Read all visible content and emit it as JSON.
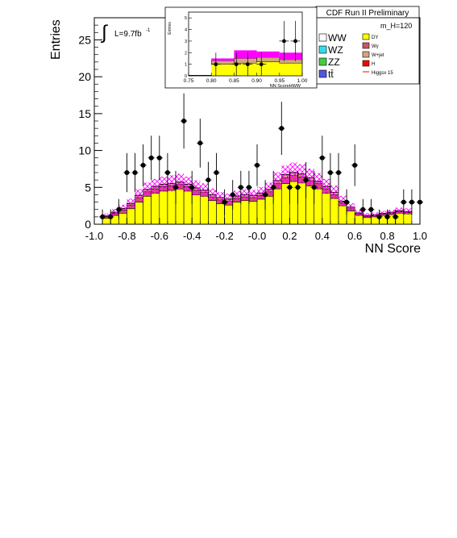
{
  "chart_data": {
    "type": "histogram",
    "header": "CDF Run II Preliminary",
    "mass_label": "m_H=120",
    "luminosity_label": "L=9.7fb",
    "luminosity_exponent": "-1",
    "xlabel": "NN Score",
    "ylabel": "Entries",
    "xlim": [
      -1.0,
      1.0
    ],
    "ylim": [
      0,
      28
    ],
    "x_ticks": [
      "-1.0",
      "-0.8",
      "-0.6",
      "-0.4",
      "-0.2",
      "-0.0",
      "0.2",
      "0.4",
      "0.6",
      "0.8",
      "1.0"
    ],
    "x_tick_values": [
      -1.0,
      -0.8,
      -0.6,
      -0.4,
      -0.2,
      0.0,
      0.2,
      0.4,
      0.6,
      0.8,
      1.0
    ],
    "y_ticks": [
      "0",
      "5",
      "10",
      "15",
      "20",
      "25"
    ],
    "y_tick_values": [
      0,
      5,
      10,
      15,
      20,
      25
    ],
    "bin_edges_start": -0.95,
    "bin_width": 0.05,
    "stack": [
      {
        "name": "DY",
        "color": "#ffff00",
        "values": [
          0.8,
          1.2,
          1.5,
          2.1,
          3.0,
          3.8,
          4.2,
          4.5,
          4.6,
          4.8,
          4.5,
          4.0,
          3.8,
          3.2,
          2.8,
          2.6,
          3.0,
          3.2,
          3.1,
          3.4,
          3.8,
          4.8,
          5.5,
          5.8,
          5.6,
          5.2,
          4.8,
          4.2,
          3.5,
          2.5,
          1.8,
          1.2,
          0.9,
          1.0,
          1.2,
          1.3,
          1.5,
          1.4
        ]
      },
      {
        "name": "Wγ",
        "color": "#cc5566",
        "values": [
          0.2,
          0.3,
          0.4,
          0.5,
          0.6,
          0.6,
          0.6,
          0.6,
          0.6,
          0.6,
          0.6,
          0.6,
          0.5,
          0.5,
          0.5,
          0.5,
          0.5,
          0.5,
          0.5,
          0.5,
          0.6,
          0.7,
          0.8,
          0.8,
          0.8,
          0.7,
          0.7,
          0.6,
          0.5,
          0.4,
          0.3,
          0.2,
          0.15,
          0.15,
          0.15,
          0.2,
          0.2,
          0.2
        ]
      },
      {
        "name": "W+jet",
        "color": "#d2a680",
        "values": [
          0.1,
          0.1,
          0.2,
          0.2,
          0.3,
          0.3,
          0.3,
          0.3,
          0.3,
          0.3,
          0.3,
          0.3,
          0.3,
          0.3,
          0.3,
          0.3,
          0.3,
          0.3,
          0.3,
          0.3,
          0.3,
          0.4,
          0.4,
          0.4,
          0.4,
          0.4,
          0.3,
          0.3,
          0.3,
          0.2,
          0.2,
          0.1,
          0.1,
          0.1,
          0.1,
          0.1,
          0.1,
          0.1
        ]
      },
      {
        "name": "WW",
        "color": "#ffffff",
        "values": [
          0.05,
          0.05,
          0.05,
          0.05,
          0.05,
          0.05,
          0.05,
          0.05,
          0.05,
          0.05,
          0.05,
          0.05,
          0.05,
          0.05,
          0.05,
          0.05,
          0.05,
          0.05,
          0.05,
          0.05,
          0.05,
          0.05,
          0.05,
          0.05,
          0.05,
          0.05,
          0.05,
          0.05,
          0.05,
          0.05,
          0.05,
          0.05,
          0.05,
          0.05,
          0.05,
          0.05,
          0.05,
          0.05
        ]
      }
    ],
    "uncertainty": {
      "color": "#ff00ff",
      "values": [
        0.3,
        0.4,
        0.5,
        0.6,
        0.8,
        0.9,
        1.0,
        1.0,
        1.1,
        1.1,
        1.0,
        1.0,
        0.9,
        0.8,
        0.7,
        0.7,
        0.7,
        0.7,
        0.7,
        0.8,
        0.9,
        1.1,
        1.2,
        1.3,
        1.3,
        1.2,
        1.1,
        1.0,
        0.9,
        0.7,
        0.5,
        0.4,
        0.3,
        0.3,
        0.3,
        0.3,
        0.4,
        0.4
      ]
    },
    "higgs": {
      "name": "Higgsx 15",
      "color": "#ff0000",
      "values": [
        0.0,
        0.0,
        0.0,
        0.0,
        0.0,
        0.0,
        0.0,
        0.0,
        0.0,
        0.0,
        0.0,
        0.0,
        0.0,
        0.0,
        0.0,
        0.0,
        0.0,
        0.0,
        0.0,
        0.0,
        0.0,
        0.0,
        0.0,
        0.0,
        0.0,
        0.0,
        0.0,
        0.0,
        0.0,
        0.0,
        0.0,
        0.0,
        0.0,
        0.0,
        0.0,
        0.0,
        0.0,
        0.0
      ]
    },
    "data_points": {
      "x": [
        -0.95,
        -0.9,
        -0.85,
        -0.8,
        -0.75,
        -0.7,
        -0.65,
        -0.6,
        -0.55,
        -0.5,
        -0.45,
        -0.4,
        -0.35,
        -0.3,
        -0.25,
        -0.2,
        -0.15,
        -0.1,
        -0.05,
        0.0,
        0.05,
        0.1,
        0.15,
        0.2,
        0.25,
        0.3,
        0.35,
        0.4,
        0.45,
        0.5,
        0.55,
        0.6,
        0.65,
        0.7,
        0.75,
        0.8,
        0.85,
        0.9,
        0.95,
        1.0
      ],
      "y": [
        1,
        1,
        2,
        7,
        7,
        8,
        9,
        9,
        7,
        5,
        14,
        5,
        11,
        6,
        7,
        3,
        4,
        5,
        5,
        8,
        4,
        5,
        13,
        5,
        5,
        6,
        5,
        9,
        7,
        7,
        3,
        8,
        2,
        2,
        1,
        1,
        1,
        3,
        3,
        3
      ]
    },
    "legend": [
      {
        "name": "WW",
        "color": "#ffffff",
        "size": "big"
      },
      {
        "name": "WZ",
        "color": "#33ddee",
        "size": "big"
      },
      {
        "name": "ZZ",
        "color": "#44cc44",
        "size": "big"
      },
      {
        "name": "tt̄",
        "color": "#5555dd",
        "size": "big"
      },
      {
        "name": "DY",
        "color": "#ffff00",
        "size": "small"
      },
      {
        "name": "Wγ",
        "color": "#cc5566",
        "size": "small"
      },
      {
        "name": "W+jet",
        "color": "#d2a680",
        "size": "small"
      },
      {
        "name": "H",
        "color": "#ff0000",
        "size": "small"
      },
      {
        "name": "Higgsx 15",
        "color": "#ff0000",
        "size": "small",
        "line": true
      }
    ],
    "inset": {
      "xlabel": "NN ScoreHWW",
      "ylabel": "Entries",
      "xlim": [
        0.75,
        1.0
      ],
      "ylim": [
        0,
        5.5
      ],
      "x_ticks": [
        "0.75",
        "0.80",
        "0.85",
        "0.90",
        "0.95",
        "1.00"
      ],
      "x_tick_values": [
        0.75,
        0.8,
        0.85,
        0.9,
        0.95,
        1.0
      ],
      "y_ticks": [
        "0",
        "1",
        "2",
        "3",
        "4",
        "5"
      ],
      "y_tick_values": [
        0,
        1,
        2,
        3,
        4,
        5
      ],
      "bin_edges": [
        0.75,
        0.8,
        0.85,
        0.9,
        0.95,
        1.0
      ],
      "bkg_total": [
        0.05,
        1.3,
        1.5,
        1.6,
        1.4
      ],
      "bkg_yellow": [
        0.02,
        1.0,
        1.1,
        1.2,
        1.1
      ],
      "uncertainty_top": [
        0.0,
        1.5,
        2.2,
        2.1,
        2.0
      ],
      "data_x": [
        0.81,
        0.855,
        0.88,
        0.91,
        0.96,
        0.985
      ],
      "data_y": [
        1,
        1,
        1,
        1,
        3,
        3
      ]
    }
  }
}
